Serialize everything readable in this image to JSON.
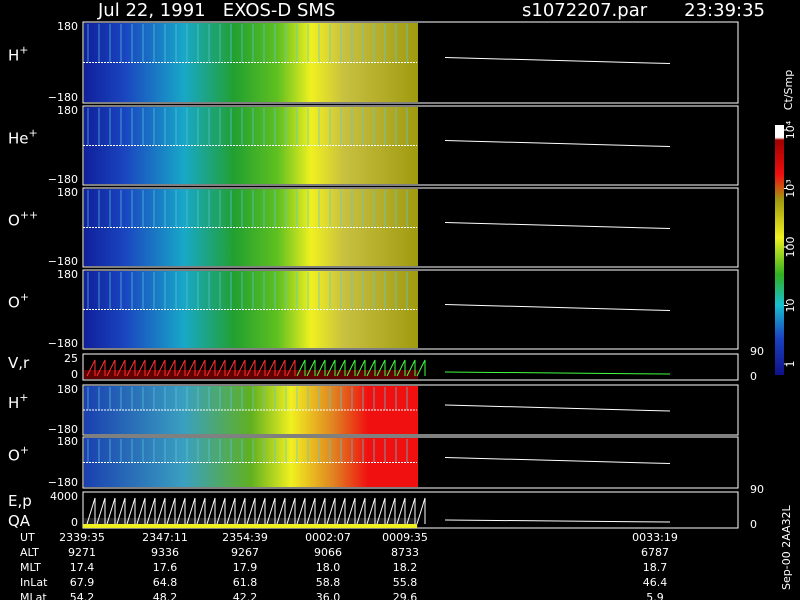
{
  "header": {
    "title": "Jul 22, 1991   EXOS-D SMS",
    "file": "s1072207.par",
    "time": "23:39:35"
  },
  "panels": [
    {
      "label": "H",
      "sup": "+",
      "ticks": [
        "180",
        "−180"
      ]
    },
    {
      "label": "He",
      "sup": "+",
      "ticks": [
        "180",
        "−180"
      ]
    },
    {
      "label": "O",
      "sup": "++",
      "ticks": [
        "180",
        "−180"
      ]
    },
    {
      "label": "O",
      "sup": "+",
      "ticks": [
        "180",
        "−180"
      ]
    },
    {
      "label": "V,r",
      "ticks": [
        "25",
        "0"
      ],
      "right_ticks": [
        "90",
        "0"
      ]
    },
    {
      "label": "H",
      "sup": "+",
      "ticks": [
        "180",
        "−180"
      ]
    },
    {
      "label": "O",
      "sup": "+",
      "ticks": [
        "180",
        "−180"
      ]
    },
    {
      "label": "E,p",
      "label2": "QA",
      "ticks": [
        "4000",
        "0"
      ],
      "right_ticks": [
        "90",
        "0"
      ]
    }
  ],
  "colorbar": {
    "unit": "Ct/Smp",
    "ticks": [
      "10⁴",
      "10³",
      "100",
      "10",
      "1"
    ]
  },
  "table": {
    "rows": [
      [
        "UT",
        "2339:35",
        "2347:11",
        "2354:39",
        "0002:07",
        "0009:35",
        "0033:19"
      ],
      [
        "ALT",
        "9271",
        "9336",
        "9267",
        "9066",
        "8733",
        "6787"
      ],
      [
        "MLT",
        "17.4",
        "17.6",
        "17.9",
        "18.0",
        "18.2",
        "18.7"
      ],
      [
        "InLat",
        "67.9",
        "64.8",
        "61.8",
        "58.8",
        "55.8",
        "46.4"
      ],
      [
        "MLat",
        "54.2",
        "48.2",
        "42.2",
        "36.0",
        "29.6",
        "5.9"
      ]
    ]
  },
  "footer": "Sep-00 2AA32L"
}
